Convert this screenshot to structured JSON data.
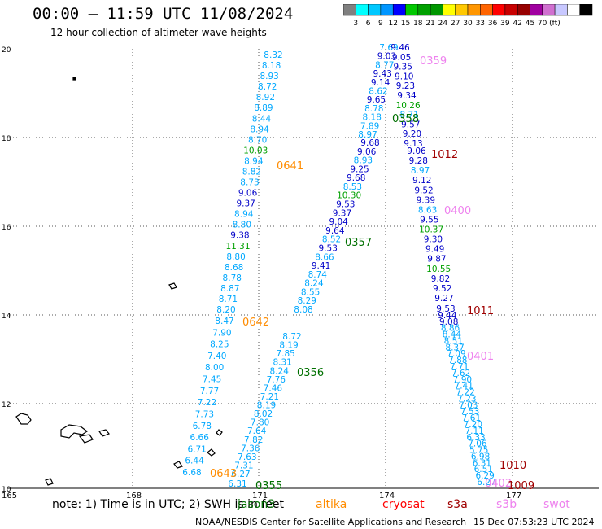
{
  "title": "00:00 – 11:59 UTC 11/08/2024",
  "subtitle": "12 hour collection of altimeter wave heights",
  "scale": {
    "unit_label": "70 (ft)",
    "colors": [
      "#808080",
      "#00ffff",
      "#00c8ff",
      "#0096ff",
      "#0000ff",
      "#00c800",
      "#00a000",
      "#009600",
      "#ffff00",
      "#ffc800",
      "#ff9600",
      "#ff6400",
      "#ff0000",
      "#c80000",
      "#960000",
      "#a000a0",
      "#d070d0",
      "#c8c8ff",
      "#ffffff",
      "#000000"
    ],
    "ticks": [
      "3",
      "6",
      "9",
      "12",
      "15",
      "18",
      "21",
      "24",
      "27",
      "30",
      "33",
      "36",
      "39",
      "42",
      "45",
      "70 (ft)"
    ]
  },
  "map": {
    "lon_labels": [
      "165",
      "168",
      "171",
      "174",
      "177"
    ],
    "lat_labels": [
      "20",
      "18",
      "16",
      "14",
      "12",
      "10"
    ]
  },
  "tracks": [
    {
      "id": "0641",
      "label": "0641",
      "color": "#ff8c00",
      "values": [
        "8.32",
        "8.18",
        "8.93",
        "8.72",
        "8.92",
        "8.89",
        "8.44",
        "8.94",
        "8.70",
        "10.03",
        "8.94",
        "8.82",
        "8.73",
        "9.06",
        "9.37",
        "8.94",
        "8.80",
        "9.38",
        "11.31",
        "8.80",
        "8.68",
        "8.78",
        "8.87",
        "8.71",
        "8.20"
      ]
    },
    {
      "id": "0642",
      "label": "0642",
      "color": "#ff8c00",
      "values": [
        "8.47",
        "7.90",
        "8.25",
        "7.40",
        "8.00",
        "7.45",
        "7.77",
        "7.22",
        "7.73",
        "6.78",
        "6.66",
        "6.71",
        "6.44",
        "6.68"
      ]
    },
    {
      "id": "0643",
      "label": "0643",
      "color": "#ff8c00",
      "values": [
        "6.31"
      ]
    },
    {
      "id": "0355",
      "label": "0355",
      "color": "#007000",
      "values": []
    },
    {
      "id": "0356",
      "label": "0356",
      "color": "#007000",
      "values": [
        "8.72",
        "8.19",
        "7.85",
        "8.31",
        "8.24",
        "7.76",
        "7.46",
        "7.21",
        "8.19",
        "8.02",
        "7.80",
        "7.64",
        "7.82",
        "7.36",
        "7.63",
        "7.31",
        "6.27"
      ]
    },
    {
      "id": "0357",
      "label": "0357",
      "color": "#007000",
      "values": [
        "9.68",
        "9.06",
        "8.93",
        "9.25",
        "9.68",
        "8.53",
        "10.30",
        "9.53",
        "9.37",
        "9.04",
        "9.64",
        "8.52",
        "9.53",
        "8.66",
        "9.41",
        "8.74",
        "8.24",
        "8.55",
        "8.29",
        "8.08"
      ]
    },
    {
      "id": "0358",
      "label": "0358",
      "color": "#007000",
      "values": [
        "7.69",
        "9.03",
        "8.77",
        "9.43",
        "9.14",
        "8.62",
        "9.65",
        "8.78",
        "8.18",
        "7.89",
        "8.97"
      ]
    },
    {
      "id": "0359",
      "label": "0359",
      "color": "#ee82ee",
      "values": [
        "9.46",
        "9.05",
        "9.35",
        "9.10",
        "9.23",
        "9.34",
        "10.26",
        "8.71",
        "9.57",
        "9.20",
        "9.13"
      ]
    },
    {
      "id": "1012",
      "label": "1012",
      "color": "#a00000",
      "values": [
        "9.06",
        "9.28",
        "8.97",
        "9.12",
        "9.52",
        "9.39",
        "8.63",
        "9.55",
        "10.37",
        "9.30",
        "9.49",
        "9.87",
        "10.55",
        "9.82",
        "9.52",
        "9.27"
      ]
    },
    {
      "id": "0400",
      "label": "0400",
      "color": "#ee82ee",
      "values": []
    },
    {
      "id": "1011",
      "label": "1011",
      "color": "#a00000",
      "values": [
        "9.53",
        "9.44",
        "9.08",
        "8.86",
        "8.44",
        "8.51",
        "8.37",
        "7.09",
        "7.88",
        "7.71",
        "7.62",
        "7.90",
        "7.41",
        "7.22",
        "7.23",
        "7.03",
        "7.53",
        "7.61",
        "7.20",
        "7.11",
        "6.33",
        "7.06",
        "5.75",
        "6.98",
        "6.31",
        "6.51",
        "6.29",
        "6.27"
      ]
    },
    {
      "id": "0401",
      "label": "0401",
      "color": "#ee82ee",
      "values": []
    },
    {
      "id": "1010",
      "label": "1010",
      "color": "#a00000",
      "values": []
    },
    {
      "id": "0402",
      "label": "0402",
      "color": "#ee82ee",
      "values": []
    },
    {
      "id": "1009",
      "label": "1009",
      "color": "#a00000",
      "values": []
    }
  ],
  "footer": {
    "note": "note: 1) Time is in UTC; 2) SWH is in feet",
    "missions": [
      {
        "name": "jason3",
        "color": "#007000"
      },
      {
        "name": "altika",
        "color": "#ff8c00"
      },
      {
        "name": "cryosat",
        "color": "#ff0000"
      },
      {
        "name": "s3a",
        "color": "#a00000"
      },
      {
        "name": "s3b",
        "color": "#ee82ee"
      },
      {
        "name": "swot",
        "color": "#ee82ee"
      }
    ],
    "credit": "NOAA/NESDIS Center for Satellite Applications and Research",
    "timestamp": "15 Dec 07:53:23 UTC 2024"
  }
}
